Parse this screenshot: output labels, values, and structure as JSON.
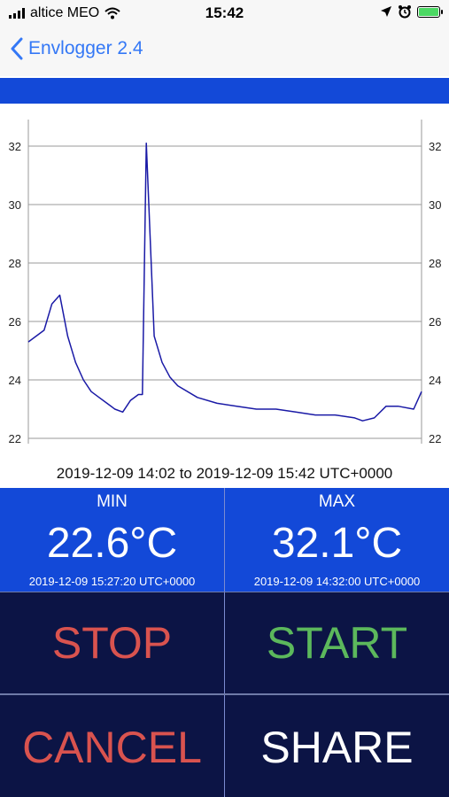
{
  "status_bar": {
    "carrier": "altice MEO",
    "time": "15:42"
  },
  "nav": {
    "back_label": "Envlogger 2.4"
  },
  "colors": {
    "accent": "#1349d8",
    "button_bg": "#0c1445",
    "stop": "#d9534f",
    "start": "#5cb85c",
    "cancel": "#d9534f",
    "share": "#ffffff",
    "line": "#1a1aa6"
  },
  "chart_data": {
    "type": "line",
    "title": "",
    "xlabel": "",
    "ylabel": "",
    "ylim": [
      22,
      32
    ],
    "y_ticks": [
      "22",
      "24",
      "26",
      "28",
      "30",
      "32"
    ],
    "grid": true,
    "x": [
      "14:02",
      "14:04",
      "14:06",
      "14:08",
      "14:10",
      "14:12",
      "14:14",
      "14:16",
      "14:18",
      "14:20",
      "14:22",
      "14:24",
      "14:26",
      "14:28",
      "14:30",
      "14:31",
      "14:32",
      "14:34",
      "14:36",
      "14:38",
      "14:40",
      "14:45",
      "14:50",
      "14:55",
      "15:00",
      "15:05",
      "15:10",
      "15:15",
      "15:20",
      "15:25",
      "15:27",
      "15:30",
      "15:33",
      "15:36",
      "15:40",
      "15:42"
    ],
    "series": [
      {
        "values": [
          25.3,
          25.5,
          25.7,
          26.6,
          26.9,
          25.5,
          24.6,
          24.0,
          23.6,
          23.4,
          23.2,
          23.0,
          22.9,
          23.3,
          23.5,
          23.5,
          32.1,
          25.5,
          24.6,
          24.1,
          23.8,
          23.4,
          23.2,
          23.1,
          23.0,
          23.0,
          22.9,
          22.8,
          22.8,
          22.7,
          22.6,
          22.7,
          23.1,
          23.1,
          23.0,
          23.6
        ]
      }
    ]
  },
  "range_text": "2019-12-09 14:02 to 2019-12-09 15:42 UTC+0000",
  "min": {
    "label": "MIN",
    "value": "22.6°C",
    "timestamp": "2019-12-09 15:27:20 UTC+0000"
  },
  "max": {
    "label": "MAX",
    "value": "32.1°C",
    "timestamp": "2019-12-09 14:32:00 UTC+0000"
  },
  "buttons": {
    "stop": "STOP",
    "start": "START",
    "cancel": "CANCEL",
    "share": "SHARE"
  }
}
